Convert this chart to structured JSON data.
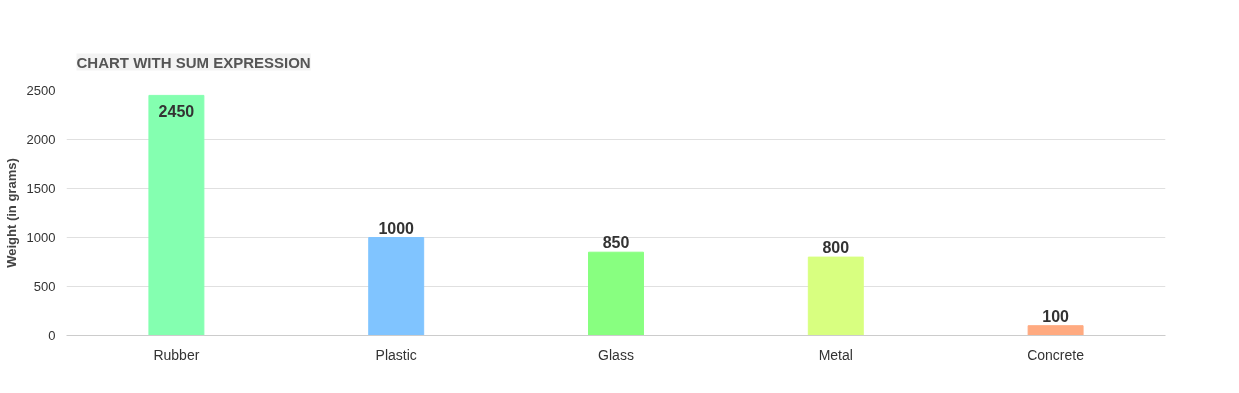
{
  "chart_data": {
    "type": "bar",
    "title": "CHART WITH SUM EXPRESSION",
    "ylabel": "Weight (in grams)",
    "categories": [
      "Rubber",
      "Plastic",
      "Glass",
      "Metal",
      "Concrete"
    ],
    "values": [
      2450,
      1000,
      850,
      800,
      100
    ],
    "colors": [
      "#84ffb0",
      "#80c4ff",
      "#88ff80",
      "#d8ff80",
      "#ffaa80"
    ],
    "ylim": [
      0,
      2500
    ],
    "yticks": [
      0,
      500,
      1000,
      1500,
      2000,
      2500
    ],
    "grid": "y",
    "data_labels": true
  }
}
